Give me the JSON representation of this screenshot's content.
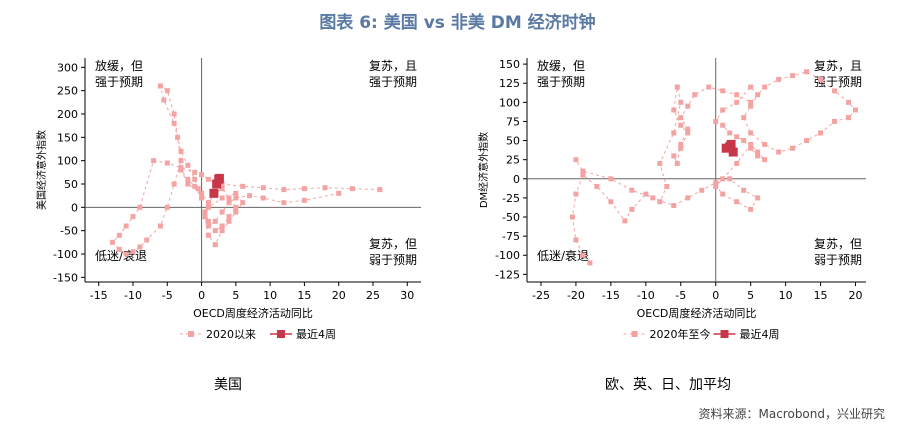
{
  "title": "图表 6:  美国 vs 非美 DM 经济时钟",
  "source": "资料来源：Macrobond，兴业研究",
  "colors": {
    "history": "#f4a3a3",
    "recent": "#c8364a",
    "axis": "#000000",
    "zero": "#666666",
    "title": "#5a7aa3"
  },
  "chart_data": [
    {
      "type": "scatter",
      "caption": "美国",
      "xlabel": "OECD周度经济活动同比",
      "ylabel": "美国经济意外指数",
      "xlim": [
        -17,
        32
      ],
      "ylim": [
        -160,
        320
      ],
      "xticks": [
        -15,
        -10,
        -5,
        0,
        5,
        10,
        15,
        20,
        25,
        30
      ],
      "yticks": [
        300,
        250,
        200,
        150,
        100,
        50,
        0,
        -50,
        -100,
        -150
      ],
      "quadrant_labels": [
        {
          "text": "放缓，但\n强于预期",
          "pos": "top-left"
        },
        {
          "text": "复苏，且\n强于预期",
          "pos": "top-right"
        },
        {
          "text": "低迷/衰退",
          "pos": "bottom-left"
        },
        {
          "text": "复苏，但\n弱于预期",
          "pos": "bottom-right"
        }
      ],
      "legend": [
        "2020以来",
        "最近4周"
      ],
      "series": [
        {
          "name": "2020以来",
          "style": "dashed-square",
          "x": [
            26,
            22,
            18,
            15,
            12,
            9,
            6,
            3,
            1,
            0,
            -1,
            -3,
            -5,
            -7,
            -9,
            -10,
            -11,
            -12,
            -13,
            -12,
            -11,
            -10,
            -9,
            -8,
            -6,
            -5,
            -4,
            -3,
            -3.5,
            -4,
            -5,
            -6,
            -5.5,
            -4,
            -3,
            -2,
            -1,
            -0.5,
            0,
            -1,
            -2,
            -3,
            -2,
            0,
            1,
            0.5,
            1,
            2,
            3,
            4,
            5,
            4,
            3,
            2,
            1,
            0.5,
            1,
            2,
            3,
            4,
            5,
            6,
            5,
            3,
            1,
            0.5,
            1,
            2,
            3,
            4,
            5,
            7,
            9,
            12,
            15,
            20
          ],
          "y": [
            38,
            40,
            42,
            40,
            38,
            42,
            45,
            50,
            60,
            70,
            75,
            85,
            95,
            100,
            0,
            -20,
            -40,
            -60,
            -75,
            -90,
            -100,
            -95,
            -85,
            -70,
            -40,
            0,
            50,
            100,
            150,
            200,
            250,
            260,
            230,
            180,
            120,
            90,
            60,
            40,
            20,
            45,
            60,
            80,
            50,
            30,
            10,
            -10,
            -30,
            -50,
            -40,
            -20,
            0,
            20,
            40,
            30,
            10,
            -20,
            -60,
            -80,
            -50,
            -30,
            -10,
            10,
            30,
            20,
            0,
            -20,
            -40,
            -30,
            -10,
            10,
            20,
            25,
            20,
            10,
            15,
            30
          ]
        },
        {
          "name": "最近4周",
          "style": "solid-square",
          "x": [
            1.8,
            2.2,
            2.5,
            2.6
          ],
          "y": [
            30,
            50,
            60,
            62
          ]
        }
      ]
    },
    {
      "type": "scatter",
      "caption": "欧、英、日、加平均",
      "xlabel": "OECD周度经济活动同比",
      "ylabel": "DM经济意外指数",
      "xlim": [
        -27,
        21.5
      ],
      "ylim": [
        -135,
        158
      ],
      "xticks": [
        -25,
        -20,
        -15,
        -10,
        -5,
        0,
        5,
        10,
        15,
        20
      ],
      "yticks": [
        150,
        125,
        100,
        75,
        50,
        25,
        0,
        -25,
        -50,
        -75,
        -100,
        -125
      ],
      "quadrant_labels": [
        {
          "text": "放缓，但\n强于预期",
          "pos": "top-left"
        },
        {
          "text": "复苏，且\n强于预期",
          "pos": "top-right"
        },
        {
          "text": "低迷/衰退",
          "pos": "bottom-left"
        },
        {
          "text": "复苏，但\n弱于预期",
          "pos": "bottom-right"
        }
      ],
      "legend": [
        "2020年至今",
        "最近4周"
      ],
      "series": [
        {
          "name": "2020年至今",
          "style": "dashed-square",
          "x": [
            -18,
            -19,
            -20,
            -20.5,
            -20,
            -19,
            -17,
            -15,
            -13,
            -12,
            -10,
            -8,
            -7,
            -8,
            -6,
            -5,
            -5.5,
            -6,
            -5,
            -4,
            -5,
            -6,
            -5.5,
            -5,
            -4,
            -5,
            -4,
            -3,
            -1,
            1,
            3,
            5,
            7,
            9,
            11,
            13,
            15,
            17,
            19,
            20,
            19,
            17,
            15,
            13,
            11,
            9,
            7,
            5,
            4,
            5,
            6,
            5,
            3,
            1,
            0,
            1,
            2,
            3,
            4,
            5,
            6,
            7,
            6,
            5,
            3,
            1,
            0,
            1,
            3,
            5,
            6,
            4,
            2,
            0,
            -2,
            -4,
            -6,
            -9,
            -12,
            -15,
            -19,
            -20
          ],
          "y": [
            -110,
            -100,
            -80,
            -50,
            -20,
            5,
            -10,
            -30,
            -55,
            -40,
            -20,
            -30,
            -10,
            20,
            60,
            100,
            120,
            90,
            70,
            60,
            40,
            30,
            20,
            45,
            65,
            80,
            95,
            110,
            120,
            115,
            110,
            100,
            120,
            130,
            135,
            140,
            130,
            115,
            100,
            90,
            80,
            75,
            60,
            50,
            40,
            35,
            45,
            60,
            80,
            95,
            110,
            120,
            100,
            90,
            75,
            70,
            60,
            55,
            50,
            40,
            30,
            25,
            35,
            45,
            20,
            0,
            -10,
            -20,
            -30,
            -40,
            -25,
            -15,
            0,
            -5,
            -15,
            -25,
            -35,
            -25,
            -15,
            0,
            10,
            25
          ]
        },
        {
          "name": "最近4周",
          "style": "solid-square",
          "x": [
            1.5,
            2.0,
            2.5,
            2.2
          ],
          "y": [
            40,
            42,
            35,
            45
          ]
        }
      ]
    }
  ]
}
